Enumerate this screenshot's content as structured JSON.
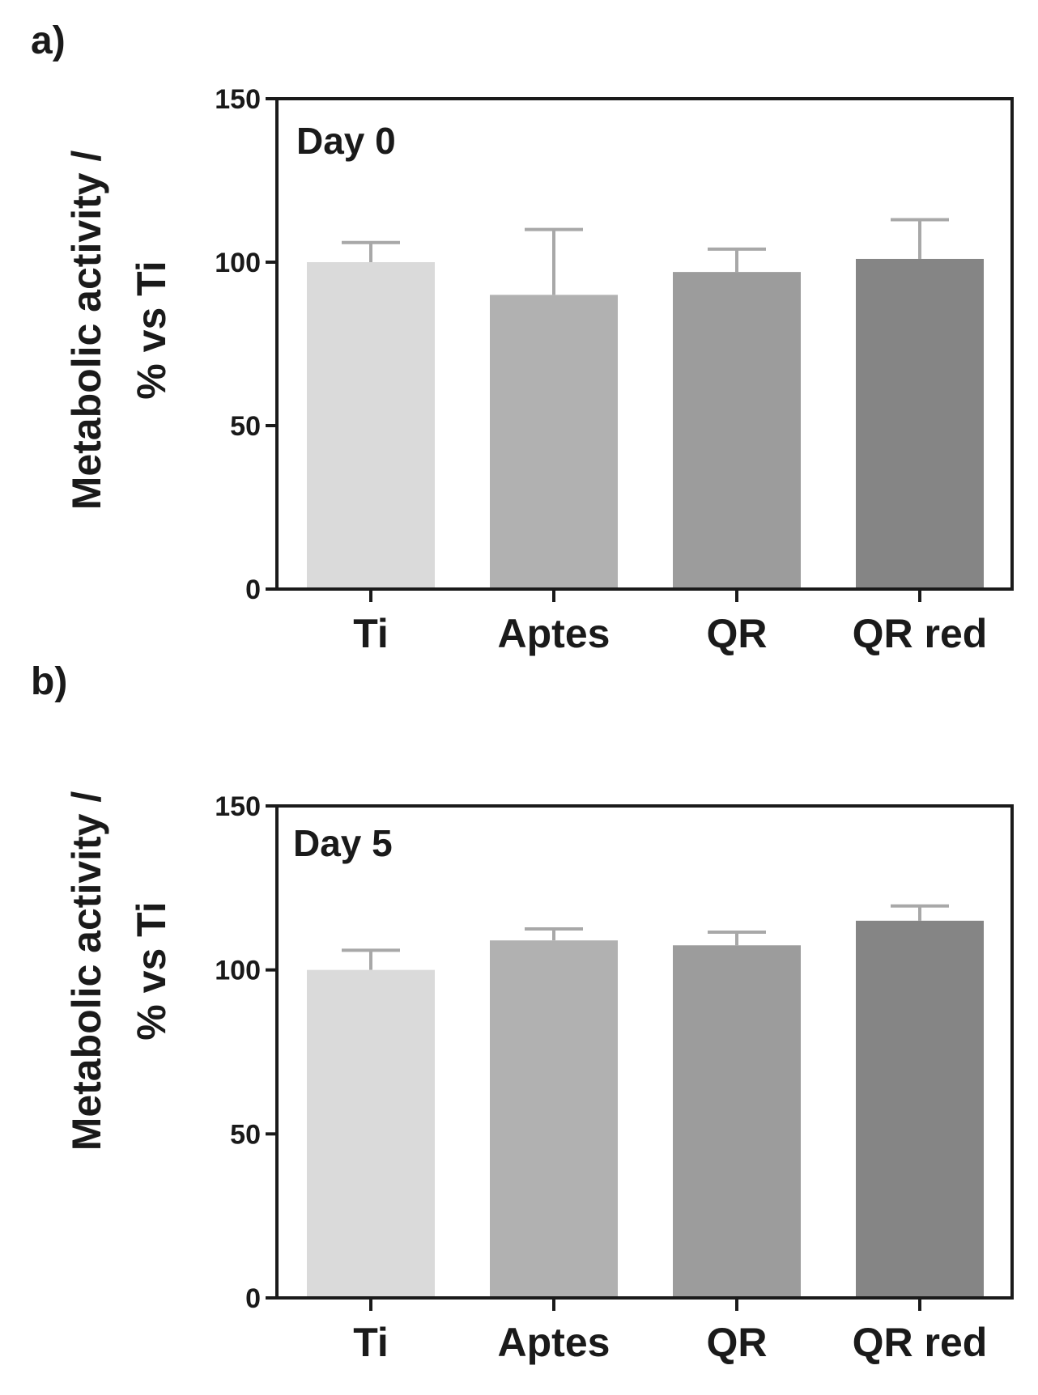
{
  "chart_data": [
    {
      "type": "bar",
      "panel_label": "a)",
      "title": "Day 0",
      "ylabel_line1": "Metabolic activity /",
      "ylabel_line2": "% vs Ti",
      "xlabel": "",
      "categories": [
        "Ti",
        "Aptes",
        "QR",
        "QR red"
      ],
      "values": [
        100,
        90,
        97,
        101
      ],
      "errors": [
        6,
        20,
        7,
        12
      ],
      "colors": [
        "#dadada",
        "#b1b1b1",
        "#9c9c9c",
        "#858585"
      ],
      "error_color": "#a8a8a8",
      "ylim": [
        0,
        150
      ],
      "yticks": [
        0,
        50,
        100,
        150
      ],
      "ytick_labels": [
        "0",
        "50",
        "100",
        "150"
      ],
      "grid": false
    },
    {
      "type": "bar",
      "panel_label": "b)",
      "title": "Day 5",
      "ylabel_line1": "Metabolic activity /",
      "ylabel_line2": "% vs Ti",
      "xlabel": "",
      "categories": [
        "Ti",
        "Aptes",
        "QR",
        "QR red"
      ],
      "values": [
        100,
        109,
        107.5,
        115
      ],
      "errors": [
        6,
        3.5,
        4,
        4.5
      ],
      "colors": [
        "#dadada",
        "#b1b1b1",
        "#9c9c9c",
        "#858585"
      ],
      "error_color": "#a8a8a8",
      "ylim": [
        0,
        150
      ],
      "yticks": [
        0,
        50,
        100,
        150
      ],
      "ytick_labels": [
        "0",
        "50",
        "100",
        "150"
      ],
      "grid": false
    }
  ]
}
